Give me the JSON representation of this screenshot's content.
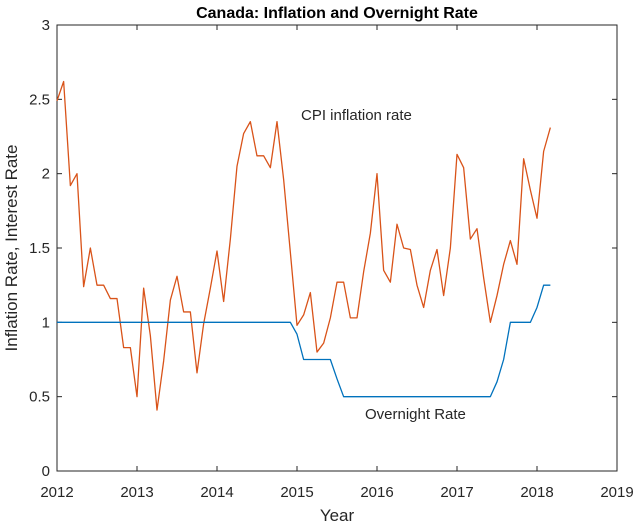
{
  "chart_data": {
    "type": "line",
    "title": "Canada: Inflation and Overnight Rate",
    "xlabel": "Year",
    "ylabel": "Inflation Rate, Interest Rate",
    "xlim": [
      2012,
      2019
    ],
    "ylim": [
      0,
      3
    ],
    "xticks": [
      "2012",
      "2013",
      "2014",
      "2015",
      "2016",
      "2017",
      "2018",
      "2019"
    ],
    "yticks": [
      "0",
      "0.5",
      "1",
      "1.5",
      "2",
      "2.5",
      "3"
    ],
    "grid": false,
    "annotations": [
      {
        "text": "CPI inflation rate",
        "x": 2015.05,
        "y": 2.36
      },
      {
        "text": "Overnight Rate",
        "x": 2015.85,
        "y": 0.35
      }
    ],
    "colors": {
      "cpi": "#d95319",
      "overnight": "#0072bd",
      "axis": "#262626"
    },
    "series": [
      {
        "key": "cpi",
        "x": [
          2012.0,
          2012.083,
          2012.167,
          2012.25,
          2012.333,
          2012.417,
          2012.5,
          2012.583,
          2012.667,
          2012.75,
          2012.833,
          2012.917,
          2013.0,
          2013.083,
          2013.167,
          2013.25,
          2013.333,
          2013.417,
          2013.5,
          2013.583,
          2013.667,
          2013.75,
          2013.833,
          2013.917,
          2014.0,
          2014.083,
          2014.167,
          2014.25,
          2014.333,
          2014.417,
          2014.5,
          2014.583,
          2014.667,
          2014.75,
          2014.833,
          2014.917,
          2015.0,
          2015.083,
          2015.167,
          2015.25,
          2015.333,
          2015.417,
          2015.5,
          2015.583,
          2015.667,
          2015.75,
          2015.833,
          2015.917,
          2016.0,
          2016.083,
          2016.167,
          2016.25,
          2016.333,
          2016.417,
          2016.5,
          2016.583,
          2016.667,
          2016.75,
          2016.833,
          2016.917,
          2017.0,
          2017.083,
          2017.167,
          2017.25,
          2017.333,
          2017.417,
          2017.5,
          2017.583,
          2017.667,
          2017.75,
          2017.833,
          2017.917,
          2018.0,
          2018.083,
          2018.167
        ],
        "values": [
          2.49,
          2.62,
          1.92,
          2.0,
          1.24,
          1.5,
          1.25,
          1.25,
          1.16,
          1.16,
          0.83,
          0.83,
          0.5,
          1.23,
          0.91,
          0.41,
          0.74,
          1.15,
          1.31,
          1.07,
          1.07,
          0.66,
          0.99,
          1.23,
          1.48,
          1.14,
          1.56,
          2.05,
          2.27,
          2.35,
          2.12,
          2.12,
          2.04,
          2.35,
          1.96,
          1.47,
          0.98,
          1.05,
          1.2,
          0.8,
          0.86,
          1.03,
          1.27,
          1.27,
          1.03,
          1.03,
          1.34,
          1.6,
          2.0,
          1.35,
          1.27,
          1.66,
          1.5,
          1.49,
          1.25,
          1.1,
          1.35,
          1.49,
          1.18,
          1.5,
          2.13,
          2.04,
          1.56,
          1.63,
          1.3,
          1.0,
          1.18,
          1.39,
          1.55,
          1.39,
          2.1,
          1.89,
          1.7,
          2.15,
          2.31
        ]
      },
      {
        "key": "overnight",
        "x": [
          2012.0,
          2012.5,
          2013.0,
          2013.5,
          2014.0,
          2014.5,
          2014.917,
          2015.0,
          2015.083,
          2015.25,
          2015.417,
          2015.5,
          2015.583,
          2015.75,
          2016.0,
          2016.5,
          2017.0,
          2017.417,
          2017.5,
          2017.583,
          2017.667,
          2017.75,
          2017.833,
          2017.917,
          2018.0,
          2018.083,
          2018.167
        ],
        "values": [
          1.0,
          1.0,
          1.0,
          1.0,
          1.0,
          1.0,
          1.0,
          0.92,
          0.75,
          0.75,
          0.75,
          0.62,
          0.5,
          0.5,
          0.5,
          0.5,
          0.5,
          0.5,
          0.6,
          0.75,
          1.0,
          1.0,
          1.0,
          1.0,
          1.1,
          1.25,
          1.25
        ]
      }
    ]
  }
}
